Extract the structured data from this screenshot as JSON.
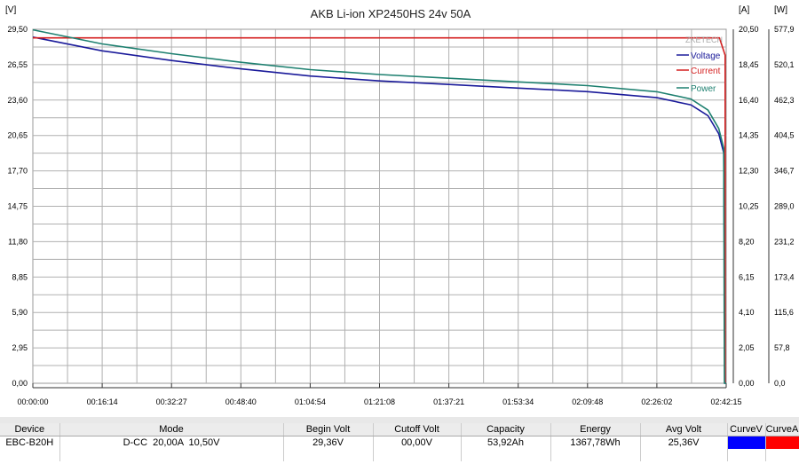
{
  "chart_data": {
    "type": "line",
    "title": "AKB Li-ion XP2450HS 24v 50A",
    "watermark": "ZKETECH",
    "x_ticks": [
      "00:00:00",
      "00:16:14",
      "00:32:27",
      "00:48:40",
      "01:04:54",
      "01:21:08",
      "01:37:21",
      "01:53:34",
      "02:09:48",
      "02:26:02",
      "02:42:15"
    ],
    "xlim": [
      "00:00:00",
      "02:42:15"
    ],
    "axes": {
      "voltage": {
        "unit": "[V]",
        "ylim": [
          0,
          29.5
        ],
        "ticks": [
          "0,00",
          "2,95",
          "5,90",
          "8,85",
          "11,80",
          "14,75",
          "17,70",
          "20,65",
          "23,60",
          "26,55",
          "29,50"
        ]
      },
      "current": {
        "unit": "[A]",
        "ylim": [
          0,
          20.5
        ],
        "ticks": [
          "0,00",
          "2,05",
          "4,10",
          "6,15",
          "8,20",
          "10,25",
          "12,30",
          "14,35",
          "16,40",
          "18,45",
          "20,50"
        ]
      },
      "power": {
        "unit": "[W]",
        "ylim": [
          0,
          577.9
        ],
        "ticks": [
          "0,0",
          "57,8",
          "115,6",
          "173,4",
          "231,2",
          "289,0",
          "346,7",
          "404,5",
          "462,3",
          "520,1",
          "577,9"
        ]
      }
    },
    "grid": true,
    "legend_position": "top-right",
    "series": [
      {
        "name": "Voltage",
        "axis": "voltage",
        "color": "#1a1a9a",
        "x": [
          "00:00:00",
          "00:16:14",
          "00:32:27",
          "00:48:40",
          "01:04:54",
          "01:21:08",
          "01:37:21",
          "01:53:34",
          "02:09:48",
          "02:26:02",
          "02:34:00",
          "02:38:00",
          "02:40:30",
          "02:41:40",
          "02:42:00",
          "02:42:15"
        ],
        "y": [
          28.85,
          27.7,
          26.9,
          26.2,
          25.6,
          25.2,
          24.9,
          24.6,
          24.3,
          23.8,
          23.2,
          22.3,
          20.8,
          19.2,
          0,
          0
        ]
      },
      {
        "name": "Current",
        "axis": "current",
        "color": "#d42020",
        "x": [
          "00:00:00",
          "02:40:40",
          "02:42:00",
          "02:42:00"
        ],
        "y": [
          20.0,
          20.0,
          19.0,
          0
        ]
      },
      {
        "name": "Power",
        "axis": "power",
        "color": "#1e8070",
        "x": [
          "00:00:00",
          "00:16:14",
          "00:32:27",
          "00:48:40",
          "01:04:54",
          "01:21:08",
          "01:37:21",
          "01:53:34",
          "02:09:48",
          "02:26:02",
          "02:34:00",
          "02:38:00",
          "02:40:30",
          "02:41:40",
          "02:41:50",
          "02:42:15"
        ],
        "y": [
          577,
          554,
          538,
          524,
          512,
          504,
          498,
          492,
          486,
          476,
          464,
          446,
          416,
          384,
          0,
          0
        ]
      }
    ]
  },
  "table": {
    "headers": [
      "Device",
      "Mode",
      "Begin Volt",
      "Cutoff Volt",
      "Capacity",
      "Energy",
      "Avg Volt",
      "CurveV",
      "CurveA"
    ],
    "row": [
      "EBC-B20H",
      "D-CC  20,00A  10,50V",
      "29,36V",
      "00,00V",
      "53,92Ah",
      "1367,78Wh",
      "25,36V",
      "",
      ""
    ],
    "curve_colors": [
      "#0000ff",
      "#ff0000"
    ]
  }
}
